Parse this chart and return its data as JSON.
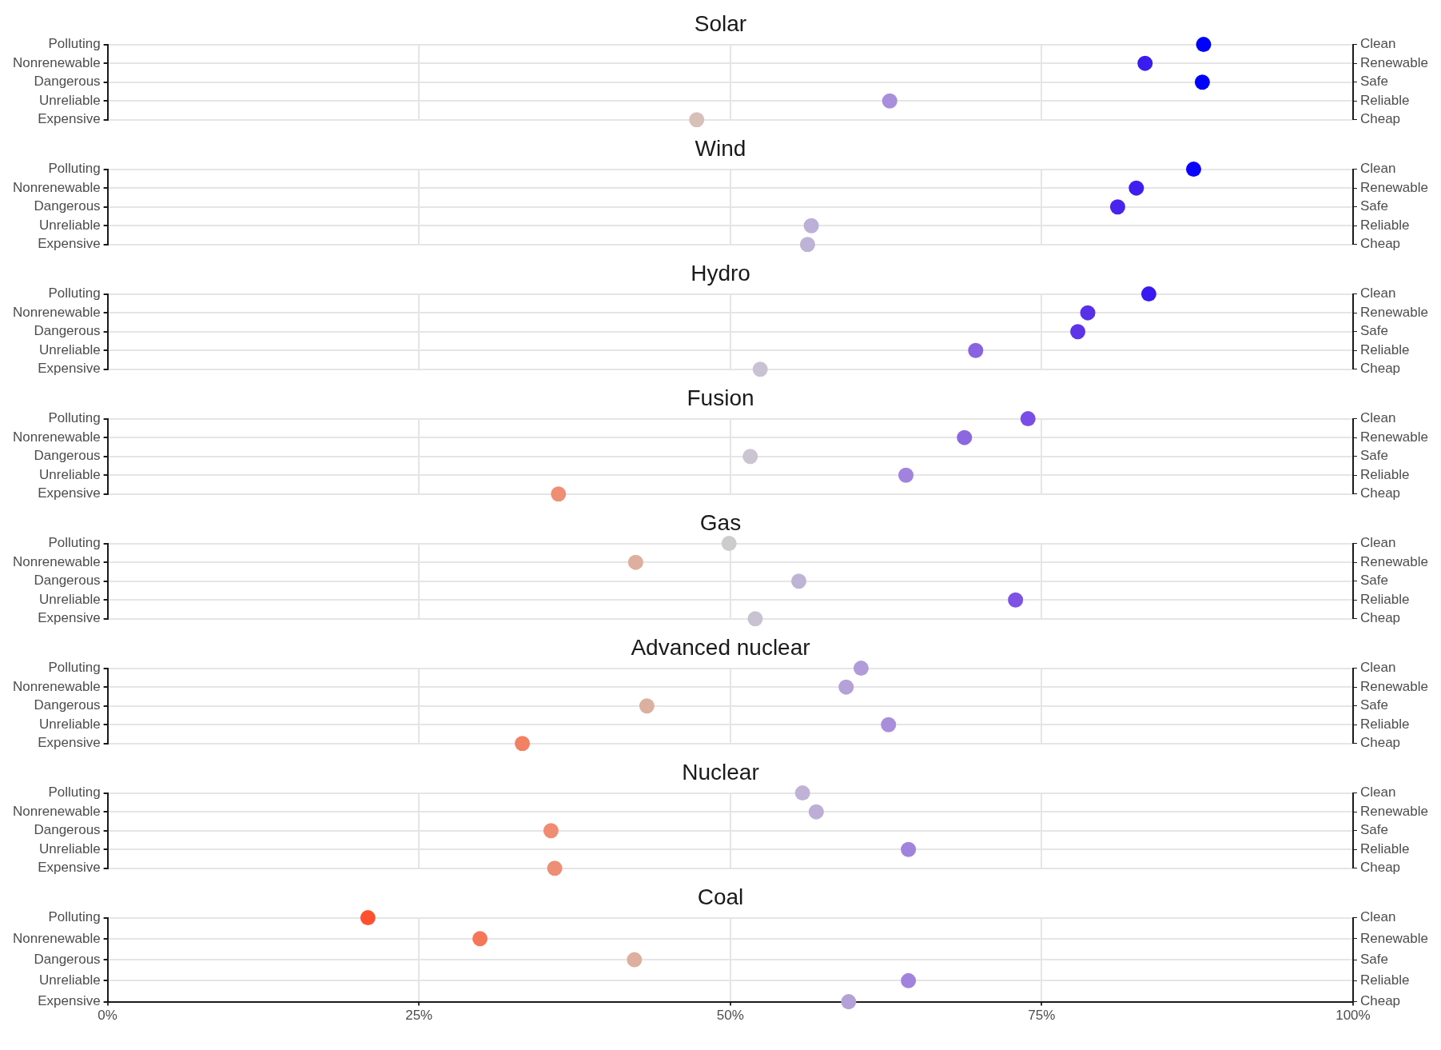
{
  "chart_data": [
    {
      "type": "scatter",
      "title": "Solar",
      "orientation": "horizontal",
      "categories": [
        "Polluting",
        "Nonrenewable",
        "Dangerous",
        "Unreliable",
        "Expensive"
      ],
      "y2_categories": [
        "Clean",
        "Renewable",
        "Safe",
        "Reliable",
        "Cheap"
      ],
      "values": [
        88.0,
        83.3,
        87.9,
        62.8,
        47.3
      ],
      "colors": [
        "#0000ff",
        "#3a1cf0",
        "#0000ff",
        "#a98fdb",
        "#d6c0b8"
      ],
      "xlim": [
        0,
        100
      ],
      "xticks": [
        {
          "value": 0,
          "label": null
        },
        {
          "value": 25,
          "label": null
        },
        {
          "value": 50,
          "label": null
        },
        {
          "value": 75,
          "label": null
        },
        {
          "value": 100,
          "label": null
        }
      ],
      "tick_labels": "y",
      "grid": true,
      "marker": "circle"
    },
    {
      "type": "scatter",
      "title": "Wind",
      "orientation": "horizontal",
      "categories": [
        "Polluting",
        "Nonrenewable",
        "Dangerous",
        "Unreliable",
        "Expensive"
      ],
      "y2_categories": [
        "Clean",
        "Renewable",
        "Safe",
        "Reliable",
        "Cheap"
      ],
      "values": [
        87.2,
        82.6,
        81.1,
        56.5,
        56.2
      ],
      "colors": [
        "#0a04fc",
        "#3e1ff0",
        "#4824ee",
        "#bdb0d6",
        "#beb2d6"
      ],
      "xlim": [
        0,
        100
      ],
      "xticks": [
        {
          "value": 0,
          "label": null
        },
        {
          "value": 25,
          "label": null
        },
        {
          "value": 50,
          "label": null
        },
        {
          "value": 75,
          "label": null
        },
        {
          "value": 100,
          "label": null
        }
      ],
      "tick_labels": "y",
      "grid": true,
      "marker": "circle"
    },
    {
      "type": "scatter",
      "title": "Hydro",
      "orientation": "horizontal",
      "categories": [
        "Polluting",
        "Nonrenewable",
        "Dangerous",
        "Unreliable",
        "Expensive"
      ],
      "y2_categories": [
        "Clean",
        "Renewable",
        "Safe",
        "Reliable",
        "Cheap"
      ],
      "values": [
        83.6,
        78.7,
        77.9,
        69.7,
        52.4
      ],
      "colors": [
        "#3819f1",
        "#5830e8",
        "#5d34e8",
        "#8a63e0",
        "#c8c2d2"
      ],
      "xlim": [
        0,
        100
      ],
      "xticks": [
        {
          "value": 0,
          "label": null
        },
        {
          "value": 25,
          "label": null
        },
        {
          "value": 50,
          "label": null
        },
        {
          "value": 75,
          "label": null
        },
        {
          "value": 100,
          "label": null
        }
      ],
      "tick_labels": "y",
      "grid": true,
      "marker": "circle"
    },
    {
      "type": "scatter",
      "title": "Fusion",
      "orientation": "horizontal",
      "categories": [
        "Polluting",
        "Nonrenewable",
        "Dangerous",
        "Unreliable",
        "Expensive"
      ],
      "y2_categories": [
        "Clean",
        "Renewable",
        "Safe",
        "Reliable",
        "Cheap"
      ],
      "values": [
        73.9,
        68.8,
        51.6,
        64.1,
        36.2
      ],
      "colors": [
        "#7a4ee6",
        "#8c68e0",
        "#cac5d0",
        "#a183de",
        "#ee8e74"
      ],
      "xlim": [
        0,
        100
      ],
      "xticks": [
        {
          "value": 0,
          "label": null
        },
        {
          "value": 25,
          "label": null
        },
        {
          "value": 50,
          "label": null
        },
        {
          "value": 75,
          "label": null
        },
        {
          "value": 100,
          "label": null
        }
      ],
      "tick_labels": "y",
      "grid": true,
      "marker": "circle"
    },
    {
      "type": "scatter",
      "title": "Gas",
      "orientation": "horizontal",
      "categories": [
        "Polluting",
        "Nonrenewable",
        "Dangerous",
        "Unreliable",
        "Expensive"
      ],
      "y2_categories": [
        "Clean",
        "Renewable",
        "Safe",
        "Reliable",
        "Cheap"
      ],
      "values": [
        49.9,
        42.4,
        55.5,
        72.9,
        52.0
      ],
      "colors": [
        "#cccccc",
        "#deae9e",
        "#bfb3d6",
        "#7d52e5",
        "#c9c3d1"
      ],
      "xlim": [
        0,
        100
      ],
      "xticks": [
        {
          "value": 0,
          "label": null
        },
        {
          "value": 25,
          "label": null
        },
        {
          "value": 50,
          "label": null
        },
        {
          "value": 75,
          "label": null
        },
        {
          "value": 100,
          "label": null
        }
      ],
      "tick_labels": "y",
      "grid": true,
      "marker": "circle"
    },
    {
      "type": "scatter",
      "title": "Advanced nuclear",
      "orientation": "horizontal",
      "categories": [
        "Polluting",
        "Nonrenewable",
        "Dangerous",
        "Unreliable",
        "Expensive"
      ],
      "y2_categories": [
        "Clean",
        "Renewable",
        "Safe",
        "Reliable",
        "Cheap"
      ],
      "values": [
        60.5,
        59.3,
        43.3,
        62.7,
        33.3
      ],
      "colors": [
        "#b09cd8",
        "#b3a1d7",
        "#dcb0a0",
        "#a98fdb",
        "#f28063"
      ],
      "xlim": [
        0,
        100
      ],
      "xticks": [
        {
          "value": 0,
          "label": null
        },
        {
          "value": 25,
          "label": null
        },
        {
          "value": 50,
          "label": null
        },
        {
          "value": 75,
          "label": null
        },
        {
          "value": 100,
          "label": null
        }
      ],
      "tick_labels": "y",
      "grid": true,
      "marker": "circle"
    },
    {
      "type": "scatter",
      "title": "Nuclear",
      "orientation": "horizontal",
      "categories": [
        "Polluting",
        "Nonrenewable",
        "Dangerous",
        "Unreliable",
        "Expensive"
      ],
      "y2_categories": [
        "Clean",
        "Renewable",
        "Safe",
        "Reliable",
        "Cheap"
      ],
      "values": [
        55.8,
        56.9,
        35.6,
        64.3,
        35.9
      ],
      "colors": [
        "#bfb2d6",
        "#bcaed6",
        "#ef8c71",
        "#a183de",
        "#ee8e74"
      ],
      "xlim": [
        0,
        100
      ],
      "xticks": [
        {
          "value": 0,
          "label": null
        },
        {
          "value": 25,
          "label": null
        },
        {
          "value": 50,
          "label": null
        },
        {
          "value": 75,
          "label": null
        },
        {
          "value": 100,
          "label": null
        }
      ],
      "tick_labels": "y",
      "grid": true,
      "marker": "circle"
    },
    {
      "type": "scatter",
      "title": "Coal",
      "orientation": "horizontal",
      "categories": [
        "Polluting",
        "Nonrenewable",
        "Dangerous",
        "Unreliable",
        "Expensive"
      ],
      "y2_categories": [
        "Clean",
        "Renewable",
        "Safe",
        "Reliable",
        "Cheap"
      ],
      "values": [
        20.9,
        29.9,
        42.3,
        64.3,
        59.5
      ],
      "colors": [
        "#ff5030",
        "#f57658",
        "#deae9e",
        "#a183de",
        "#b3a1d7"
      ],
      "xlim": [
        0,
        100
      ],
      "xticks": [
        {
          "value": 0,
          "label": "0%"
        },
        {
          "value": 25,
          "label": "25%"
        },
        {
          "value": 50,
          "label": "50%"
        },
        {
          "value": 75,
          "label": "75%"
        },
        {
          "value": 100,
          "label": "100%"
        }
      ],
      "grid": true,
      "marker": "circle"
    }
  ]
}
